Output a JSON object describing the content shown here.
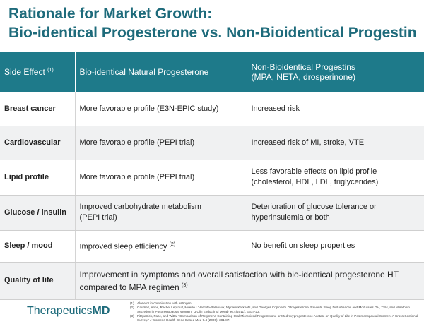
{
  "title": {
    "line1": "Rationale for Market Growth:",
    "line2": "Bio-identical Progesterone vs. Non-Bioidentical Progestin"
  },
  "table": {
    "headers": {
      "col1": "Side Effect",
      "col1_sup": "(1)",
      "col2": "Bio-identical Natural Progesterone",
      "col3_line1": "Non-Bioidentical Progestins",
      "col3_line2": "(MPA, NETA, drosperinone)"
    },
    "rows": [
      {
        "label": "Breast cancer",
        "bio": "More favorable profile (E3N-EPIC study)",
        "non": "Increased risk"
      },
      {
        "label": "Cardiovascular",
        "bio": "More favorable profile (PEPI trial)",
        "non": "Increased risk of MI, stroke, VTE"
      },
      {
        "label": "Lipid profile",
        "bio": "More favorable profile (PEPI trial)",
        "non_line1": "Less favorable effects on lipid profile",
        "non_line2": "(cholesterol, HDL, LDL, triglycerides)"
      },
      {
        "label": "Glucose / insulin",
        "bio_line1": "Improved carbohydrate metabolism",
        "bio_line2": "(PEPI trial)",
        "non_line1": "Deterioration of glucose tolerance or",
        "non_line2": "hyperinsulemia or both"
      },
      {
        "label": "Sleep / mood",
        "bio": "Improved sleep efficiency",
        "bio_sup": "(2)",
        "non": "No benefit on sleep properties"
      },
      {
        "label": "Quality of life",
        "span_line1": "Improvement in symptoms and overall satisfaction with bio-identical progesterone HT",
        "span_line2": "compared to MPA regimen",
        "span_sup": "(3)"
      }
    ]
  },
  "footer": {
    "logo_light": "Therapeutics",
    "logo_bold": "MD",
    "refs": [
      {
        "num": "(1)",
        "text": "Alone or in combination with estrogen."
      },
      {
        "num": "(2)",
        "text": "Caufriez, Anne, Rachel Leproult, Mireille L'Hermite-Balériaux, Myriam Kerkhofs, and Georges Copinschi. \"Progesterone Prevents Sleep Disturbances and Modulates GH, TSH, and Melatonin Secretion in Postmenopausal Women.\" J Clin Endocrinol Metab 96.4(2011): E614-23."
      },
      {
        "num": "(3)",
        "text": "Fitzpatrick, Pace, and Witta. \"Comparison of Regimens Containing Oral Micronized Progesterone or Medroxyprogesterone Acetate on Quality of Life in Postmenopausal Women: A Cross-Sectional Survey.\" J Womens Health Gend Based Med 9.4 (2000): 381-87."
      }
    ]
  }
}
